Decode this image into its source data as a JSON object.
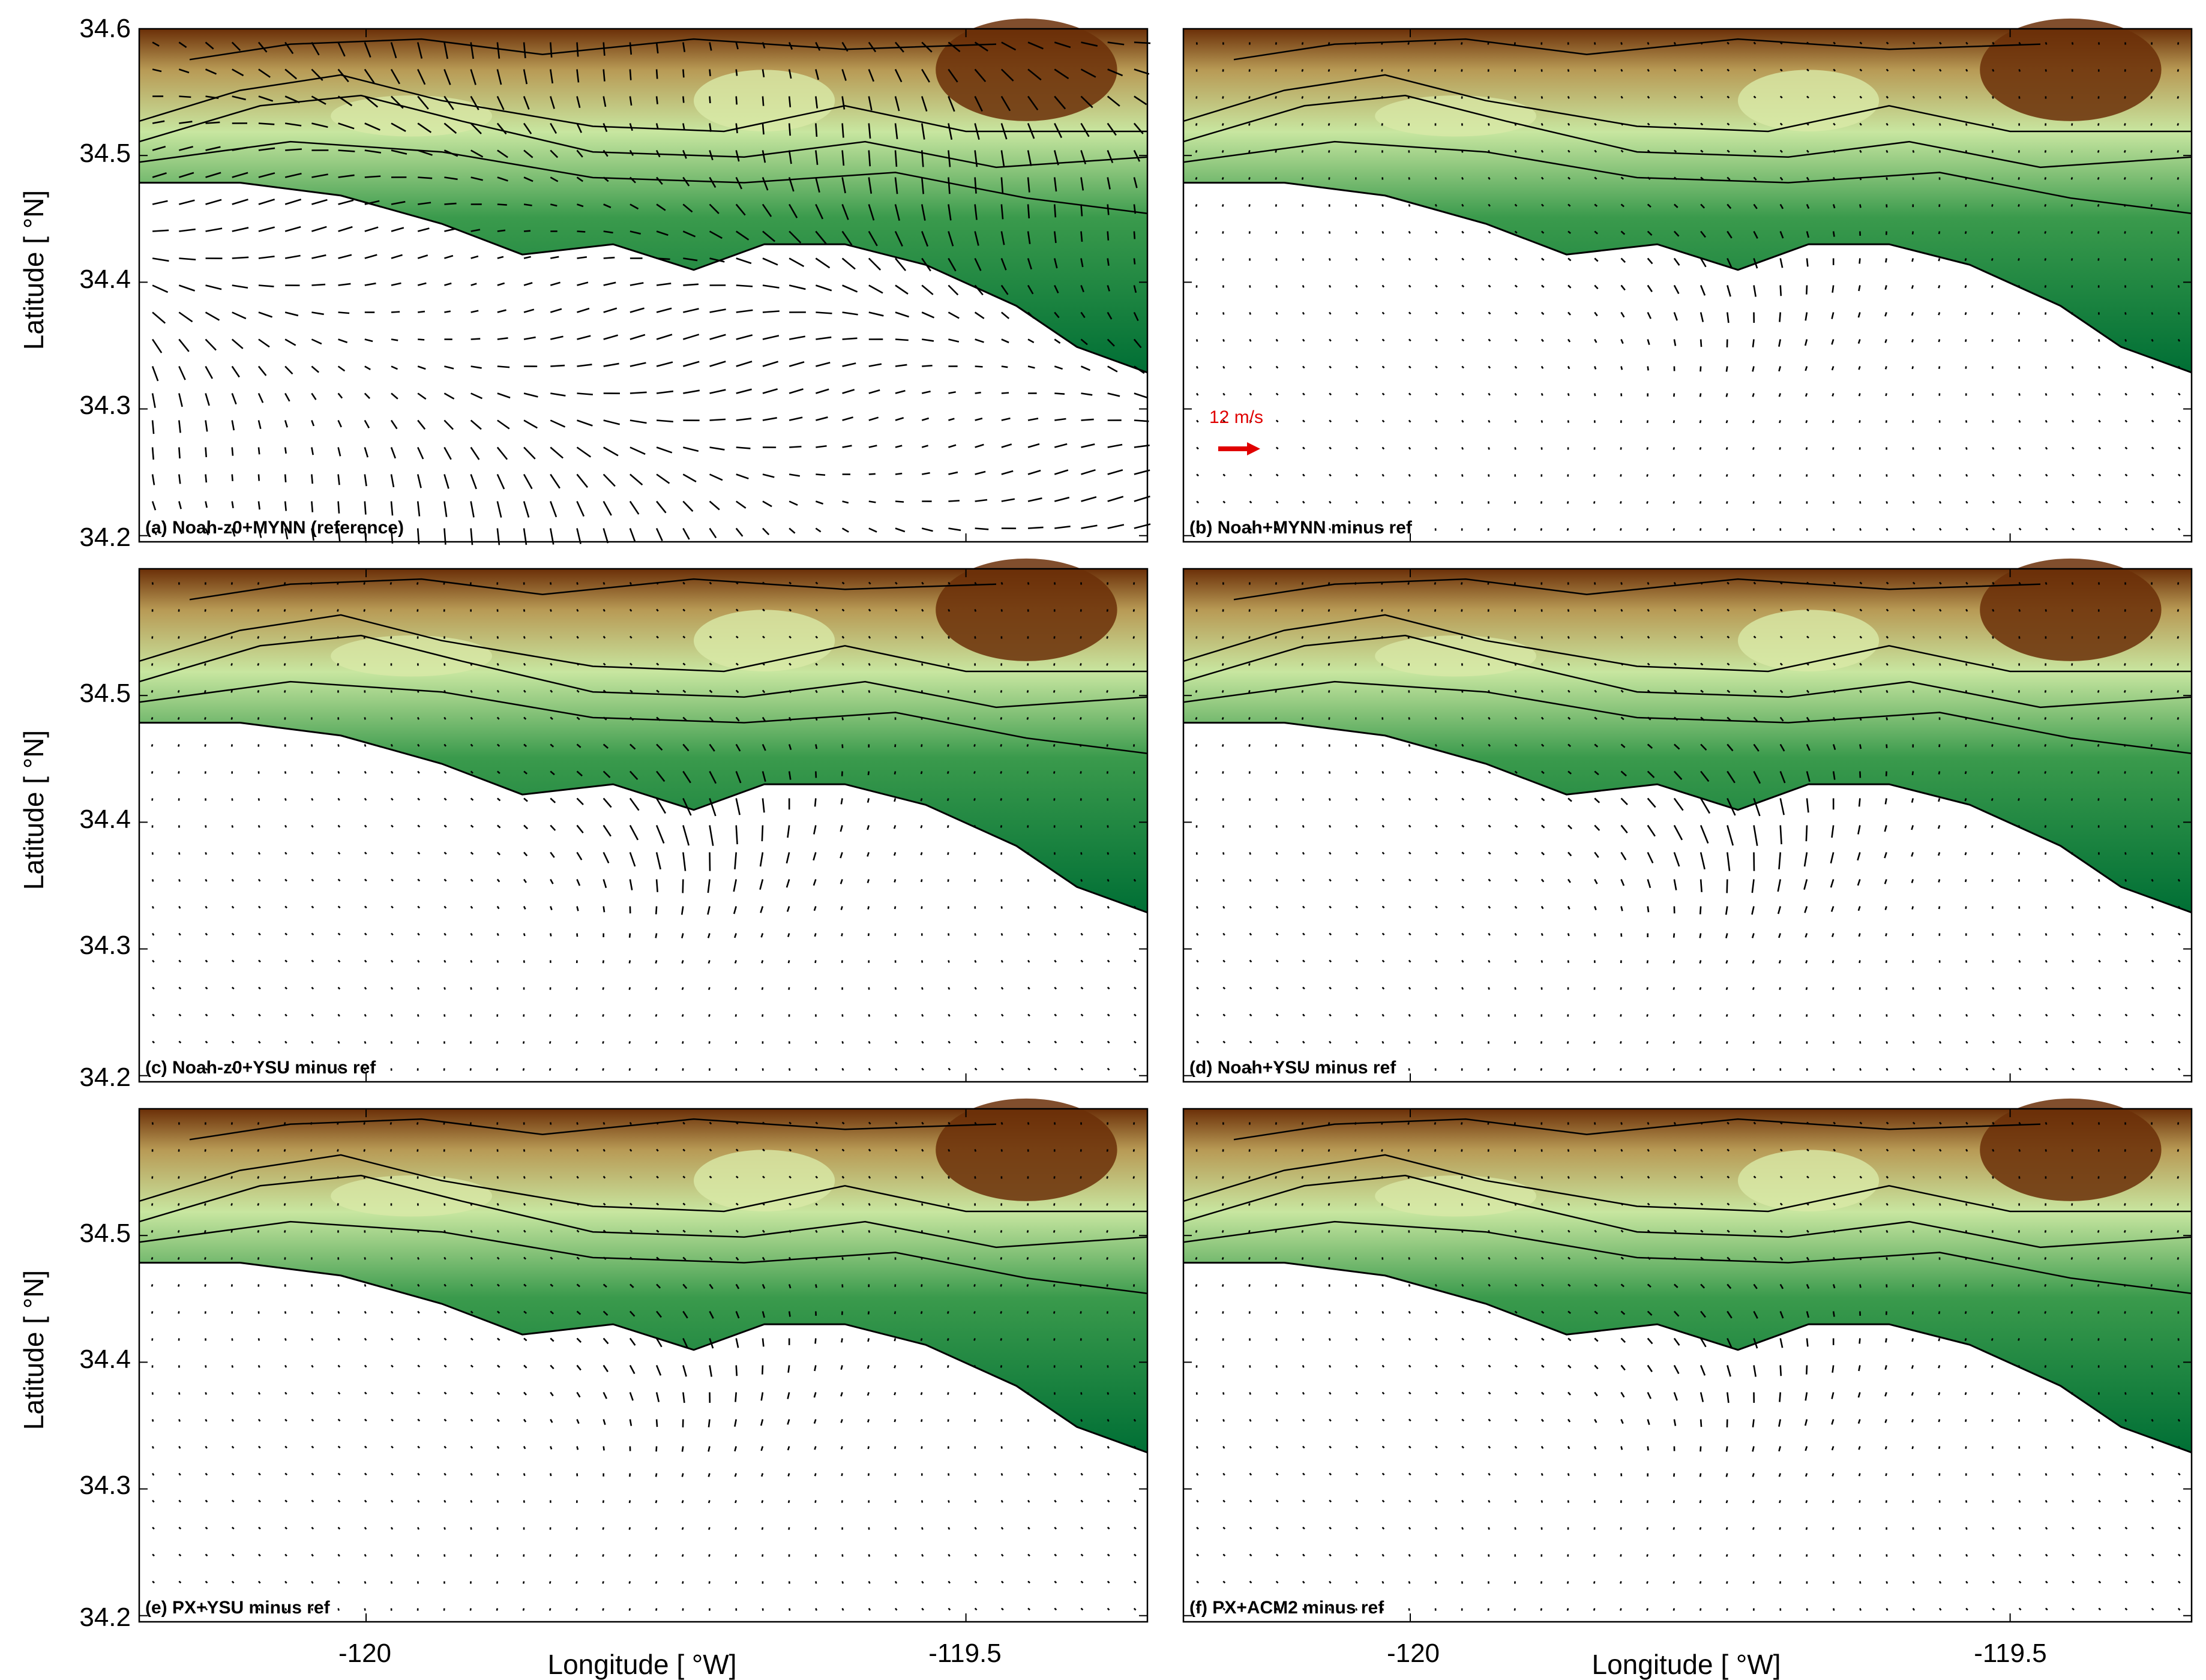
{
  "figure": {
    "axis_titles": {
      "ylabel": "Latitude [  °N]",
      "xlabel": "Longitude [  °W]"
    },
    "y_ticks": [
      "34.6",
      "34.5",
      "34.4",
      "34.3",
      "34.2"
    ],
    "x_ticks": [
      "-120",
      "-119.5"
    ],
    "scale_arrow": {
      "label": "12 m/s",
      "color": "#e00000"
    },
    "colors": {
      "sea": "#ffffff",
      "terrain_low": "#006f35",
      "terrain_mid": "#c8e6a0",
      "terrain_high": "#6b2f08",
      "contour": "#000000",
      "vector": "#000000"
    }
  },
  "panels": [
    {
      "id": "a",
      "label": "(a) Noah-z0+MYNN (reference)"
    },
    {
      "id": "b",
      "label": "(b) Noah+MYNN minus ref"
    },
    {
      "id": "c",
      "label": "(c) Noah-z0+YSU minus ref"
    },
    {
      "id": "d",
      "label": "(d) Noah+YSU minus ref"
    },
    {
      "id": "e",
      "label": "(e) PX+YSU minus ref"
    },
    {
      "id": "f",
      "label": "(f) PX+ACM2 minus ref"
    }
  ],
  "chart_data": {
    "type": "map",
    "grid": "2x3 panels",
    "lon_range": [
      -120.25,
      -119.15
    ],
    "lat_range": [
      34.2,
      34.6
    ],
    "x_tick_values": [
      -120,
      -119.5
    ],
    "y_tick_values": [
      34.2,
      34.3,
      34.4,
      34.5,
      34.6
    ],
    "vector_scale_ms": 12
  }
}
